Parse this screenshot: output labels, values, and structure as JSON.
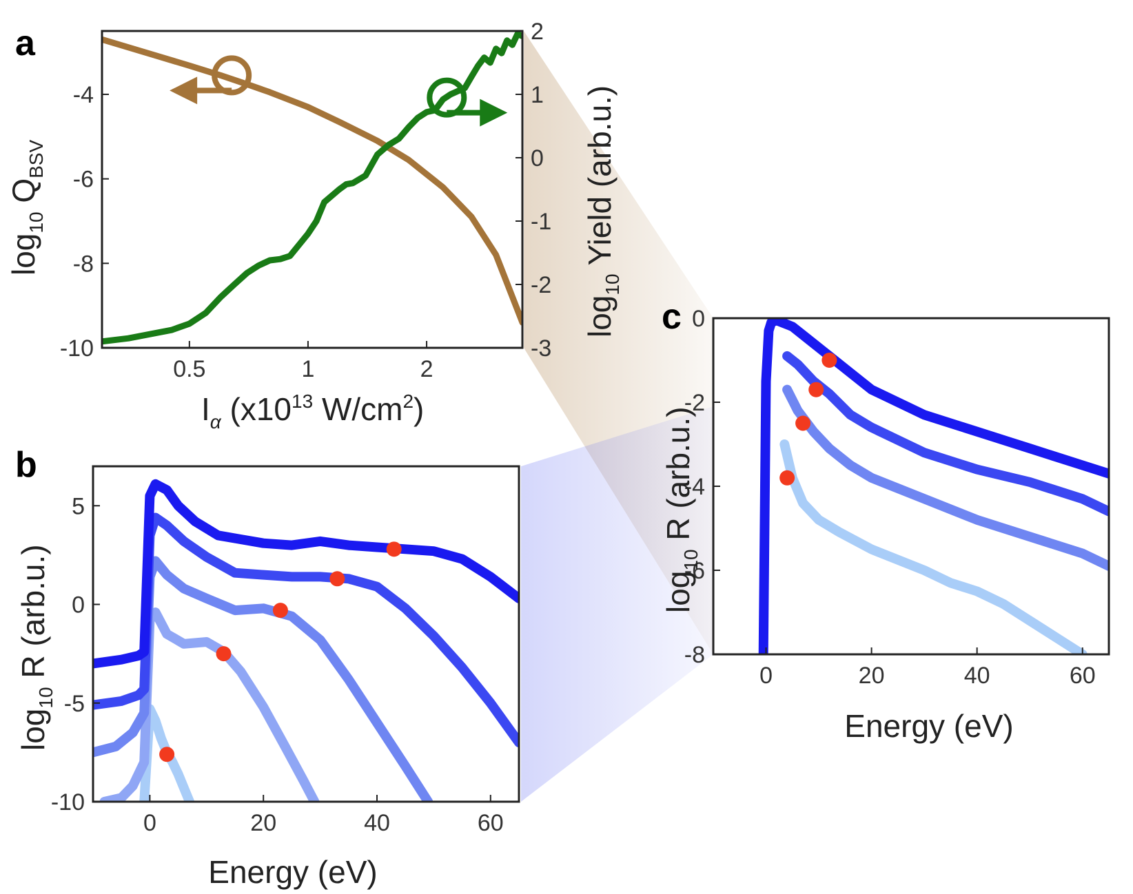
{
  "colors": {
    "brown": "#A47439",
    "green": "#197B16",
    "blue_1": "#1A1AF0",
    "blue_2": "#3B48F2",
    "blue_3": "#6F86F2",
    "blue_4": "#8FA6F5",
    "blue_5": "#A9CDF8",
    "dot": "#F23A1E"
  },
  "chart_data": [
    {
      "id": "a",
      "panel_label": "a",
      "type": "line",
      "xscale": "log",
      "xlim": [
        0.3,
        3.5
      ],
      "xticks": [
        0.5,
        1,
        2
      ],
      "xtick_labels": [
        "0.5",
        "1",
        "2"
      ],
      "xlabel": {
        "main": "I",
        "sub": "α",
        "rest": " (x10",
        "sup": "13",
        "tail": " W/cm",
        "sup2": "2",
        "close": ")"
      },
      "ylim_left": [
        -10,
        -2.5
      ],
      "yticks_left": [
        -10,
        -8,
        -6,
        -4
      ],
      "ytick_labels_left": [
        "-10",
        "-8",
        "-6",
        "-4"
      ],
      "ylabel_left": {
        "pre": "log",
        "sub": "10",
        "main": " Q",
        "sub2": "BSV"
      },
      "ylim_right": [
        -3,
        2
      ],
      "yticks_right": [
        -3,
        -2,
        -1,
        0,
        1,
        2
      ],
      "ytick_labels_right": [
        "-3",
        "-2",
        "-1",
        "0",
        "1",
        "2"
      ],
      "ylabel_right": {
        "pre": "log",
        "sub": "10",
        "main": " Yield (arb.u.)"
      },
      "series": [
        {
          "name": "Q_BSV",
          "axis": "left",
          "color": "brown",
          "x": [
            0.3,
            0.4,
            0.5,
            0.6,
            0.7,
            0.8,
            1.0,
            1.2,
            1.5,
            1.8,
            2.2,
            2.6,
            3.0,
            3.5
          ],
          "y": [
            -2.7,
            -3.05,
            -3.32,
            -3.55,
            -3.76,
            -3.95,
            -4.3,
            -4.65,
            -5.1,
            -5.55,
            -6.2,
            -6.9,
            -7.8,
            -9.4
          ]
        },
        {
          "name": "Yield",
          "axis": "right",
          "color": "green",
          "x": [
            0.3,
            0.35,
            0.4,
            0.45,
            0.5,
            0.55,
            0.6,
            0.65,
            0.7,
            0.75,
            0.8,
            0.85,
            0.9,
            1.0,
            1.05,
            1.1,
            1.2,
            1.25,
            1.3,
            1.4,
            1.5,
            1.6,
            1.7,
            1.8,
            1.9,
            2.0,
            2.1,
            2.2,
            2.3,
            2.5,
            2.6,
            2.7,
            2.8,
            2.9,
            3.0,
            3.1,
            3.2,
            3.3,
            3.4,
            3.5
          ],
          "y": [
            -2.9,
            -2.85,
            -2.78,
            -2.72,
            -2.62,
            -2.45,
            -2.2,
            -2.0,
            -1.82,
            -1.7,
            -1.62,
            -1.6,
            -1.55,
            -1.2,
            -1.0,
            -0.7,
            -0.5,
            -0.42,
            -0.4,
            -0.28,
            0.05,
            0.2,
            0.3,
            0.48,
            0.63,
            0.72,
            0.75,
            0.92,
            1.0,
            1.1,
            1.28,
            1.45,
            1.58,
            1.5,
            1.72,
            1.65,
            1.85,
            1.78,
            1.95,
            1.92
          ]
        }
      ],
      "markers": [
        {
          "series": "Q_BSV",
          "x": 0.64,
          "y": -3.55,
          "arrow": "left"
        },
        {
          "series": "Yield",
          "x": 2.25,
          "y": 0.95,
          "arrow": "right"
        }
      ]
    },
    {
      "id": "b",
      "panel_label": "b",
      "type": "line",
      "xlim": [
        -10,
        65
      ],
      "xticks": [
        0,
        20,
        40,
        60
      ],
      "xtick_labels": [
        "0",
        "20",
        "40",
        "60"
      ],
      "xlabel": "Energy (eV)",
      "ylim": [
        -10,
        7
      ],
      "yticks": [
        -10,
        -5,
        0,
        5
      ],
      "ytick_labels": [
        "-10",
        "-5",
        "0",
        "5"
      ],
      "ylabel": {
        "pre": "log",
        "sub": "10",
        "main": " R (arb.u.)"
      },
      "series": [
        {
          "name": "b1",
          "color": "blue_1",
          "x": [
            -10,
            -5,
            -2,
            -1,
            0,
            1,
            3,
            5,
            8,
            12,
            16,
            20,
            25,
            30,
            35,
            40,
            45,
            50,
            55,
            60,
            65
          ],
          "y": [
            -3.0,
            -2.8,
            -2.6,
            -2.4,
            5.5,
            6.1,
            5.8,
            5.0,
            4.2,
            3.5,
            3.3,
            3.1,
            3.0,
            3.2,
            3.0,
            2.9,
            2.8,
            2.7,
            2.3,
            1.4,
            0.3
          ]
        },
        {
          "name": "b2",
          "color": "blue_2",
          "x": [
            -10,
            -5,
            -2,
            -1,
            0,
            1,
            3,
            6,
            10,
            15,
            20,
            25,
            30,
            35,
            40,
            45,
            50,
            55,
            60,
            65
          ],
          "y": [
            -5.1,
            -4.9,
            -4.6,
            -4.3,
            3.5,
            4.4,
            4.0,
            3.2,
            2.4,
            1.6,
            1.5,
            1.4,
            1.4,
            1.3,
            0.9,
            -0.2,
            -1.6,
            -3.2,
            -5.0,
            -7.0
          ]
        },
        {
          "name": "b3",
          "color": "blue_3",
          "x": [
            -10,
            -6,
            -3,
            -1,
            0,
            1,
            3,
            6,
            10,
            15,
            20,
            25,
            30,
            35,
            40,
            45,
            49
          ],
          "y": [
            -7.5,
            -7.2,
            -6.5,
            -5.5,
            1.4,
            2.2,
            1.5,
            0.8,
            0.3,
            -0.3,
            -0.2,
            -0.6,
            -1.8,
            -3.8,
            -6.0,
            -8.2,
            -10.0
          ]
        },
        {
          "name": "b4",
          "color": "blue_4",
          "x": [
            -8,
            -5,
            -3,
            -1,
            0,
            1,
            3,
            6,
            10,
            13,
            16,
            20,
            24,
            27,
            29
          ],
          "y": [
            -10.0,
            -9.8,
            -9.2,
            -8.0,
            -0.8,
            -0.4,
            -1.5,
            -2.0,
            -1.9,
            -2.4,
            -3.4,
            -5.2,
            -7.3,
            -8.9,
            -10.0
          ]
        },
        {
          "name": "b5",
          "color": "blue_5",
          "x": [
            -1,
            0,
            1,
            2,
            3,
            4,
            5,
            6,
            7
          ],
          "y": [
            -10.0,
            -5.3,
            -5.9,
            -6.8,
            -7.5,
            -8.0,
            -8.6,
            -9.3,
            -10.0
          ]
        }
      ],
      "points": [
        {
          "x": 43,
          "y": 2.8
        },
        {
          "x": 33,
          "y": 1.3
        },
        {
          "x": 23,
          "y": -0.3
        },
        {
          "x": 13,
          "y": -2.5
        },
        {
          "x": 3,
          "y": -7.6
        }
      ]
    },
    {
      "id": "c",
      "panel_label": "c",
      "type": "line",
      "xlim": [
        -10,
        65
      ],
      "xticks": [
        0,
        20,
        40,
        60
      ],
      "xtick_labels": [
        "0",
        "20",
        "40",
        "60"
      ],
      "xlabel": "Energy (eV)",
      "ylim": [
        -8,
        0
      ],
      "yticks": [
        -8,
        -6,
        -4,
        -2,
        0
      ],
      "ytick_labels": [
        "-8",
        "-6",
        "-4",
        "-2",
        "0"
      ],
      "ylabel": {
        "pre": "log",
        "sub": "10",
        "main": " R (arb.u.)"
      },
      "series": [
        {
          "name": "c1",
          "color": "blue_1",
          "x": [
            -0.5,
            -0.2,
            0,
            0.5,
            1,
            2,
            5,
            8,
            12,
            16,
            20,
            30,
            40,
            50,
            60,
            65
          ],
          "y": [
            -8.0,
            -4.0,
            -1.5,
            -0.3,
            -0.1,
            -0.05,
            -0.2,
            -0.5,
            -0.9,
            -1.3,
            -1.7,
            -2.3,
            -2.7,
            -3.1,
            -3.5,
            -3.7
          ]
        },
        {
          "name": "c2",
          "color": "blue_2",
          "x": [
            4,
            6,
            9,
            12,
            16,
            20,
            30,
            40,
            50,
            60,
            65
          ],
          "y": [
            -0.9,
            -1.1,
            -1.5,
            -1.8,
            -2.3,
            -2.6,
            -3.2,
            -3.6,
            -3.9,
            -4.3,
            -4.6
          ]
        },
        {
          "name": "c3",
          "color": "blue_3",
          "x": [
            4,
            6,
            9,
            12,
            16,
            20,
            30,
            40,
            50,
            60,
            65
          ],
          "y": [
            -1.7,
            -2.2,
            -2.7,
            -3.1,
            -3.5,
            -3.8,
            -4.3,
            -4.8,
            -5.2,
            -5.6,
            -5.9
          ]
        },
        {
          "name": "c4",
          "color": "blue_5",
          "x": [
            3.5,
            5,
            7,
            10,
            14,
            20,
            30,
            35,
            40,
            45,
            50,
            55,
            60
          ],
          "y": [
            -3.0,
            -3.8,
            -4.4,
            -4.8,
            -5.1,
            -5.5,
            -6.0,
            -6.3,
            -6.5,
            -6.8,
            -7.2,
            -7.6,
            -8.0
          ]
        }
      ],
      "points": [
        {
          "x": 12,
          "y": -1.0
        },
        {
          "x": 9.5,
          "y": -1.7
        },
        {
          "x": 7,
          "y": -2.5
        },
        {
          "x": 4,
          "y": -3.8
        }
      ]
    }
  ]
}
